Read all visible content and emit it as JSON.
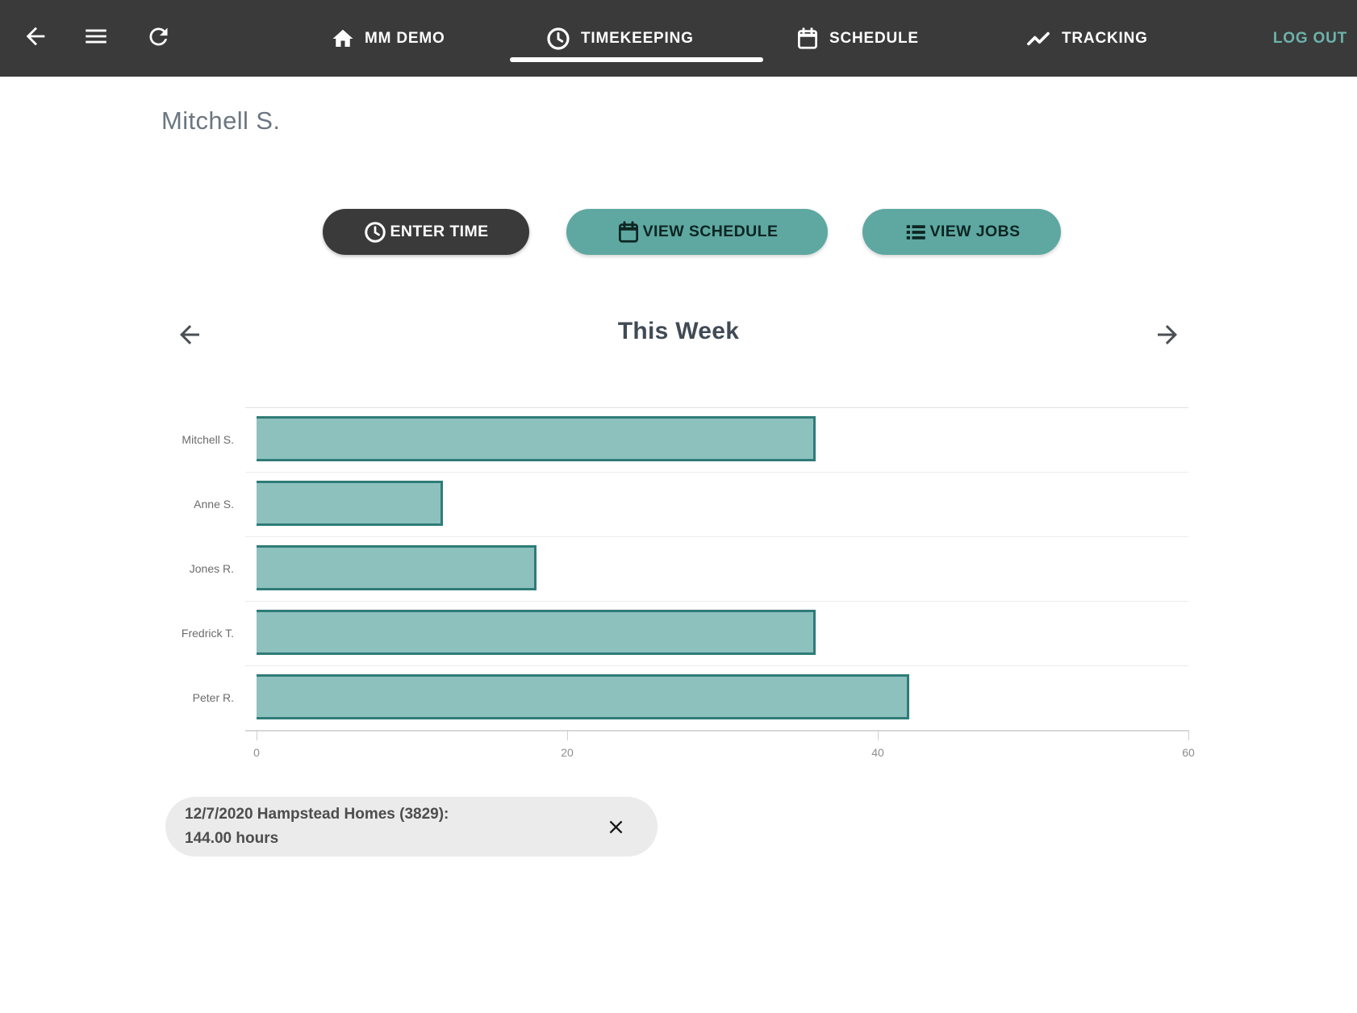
{
  "colors": {
    "nav_bg": "#3a3a3a",
    "teal_accent": "#5ea8a1",
    "logout_text": "#6db3ab",
    "bar_fill": "#8dc1be",
    "bar_border": "#2f7c78"
  },
  "nav": {
    "items": [
      {
        "label": "MM DEMO",
        "icon": "home-icon",
        "active": false
      },
      {
        "label": "TIMEKEEPING",
        "icon": "clock-icon",
        "active": true
      },
      {
        "label": "SCHEDULE",
        "icon": "calendar-icon",
        "active": false
      },
      {
        "label": "TRACKING",
        "icon": "trending-icon",
        "active": false
      }
    ],
    "logout_label": "LOG OUT"
  },
  "page": {
    "title": "Mitchell S."
  },
  "actions": {
    "enter_time": "ENTER TIME",
    "view_schedule": "VIEW SCHEDULE",
    "view_jobs": "VIEW JOBS"
  },
  "week_nav": {
    "title": "This Week"
  },
  "chart_data": {
    "type": "bar",
    "orientation": "horizontal",
    "title": "This Week",
    "categories": [
      "Mitchell S.",
      "Anne S.",
      "Jones R.",
      "Fredrick T.",
      "Peter R."
    ],
    "values": [
      36,
      12,
      18,
      36,
      42
    ],
    "value_unit": "hours",
    "xlabel": "",
    "ylabel": "",
    "xlim": [
      0,
      60
    ],
    "xticks": [
      0,
      20,
      40,
      60
    ],
    "grid": true,
    "legend": false
  },
  "snackbar": {
    "line1": "12/7/2020 Hampstead Homes (3829):",
    "line2": "144.00 hours"
  }
}
